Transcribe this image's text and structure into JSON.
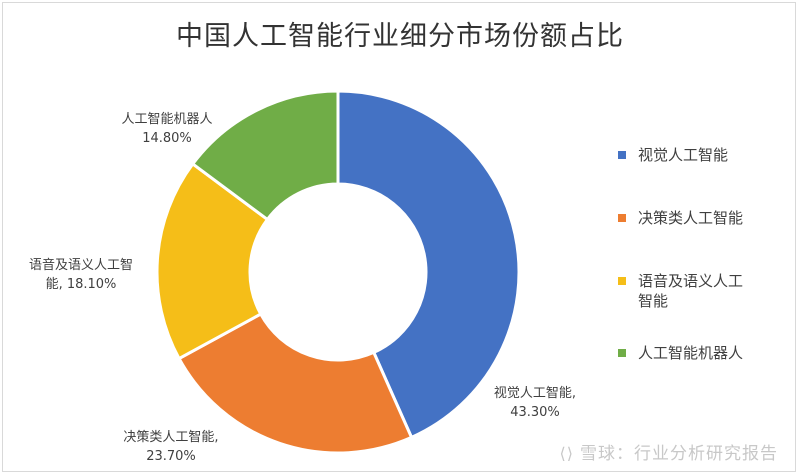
{
  "chart_data": {
    "type": "pie",
    "title": "中国人工智能行业细分市场份额占比",
    "series": [
      {
        "name": "视觉人工智能",
        "value": 43.3,
        "label": "43.30%",
        "color": "#4472C4"
      },
      {
        "name": "决策类人工智能",
        "value": 23.7,
        "label": "23.70%",
        "color": "#ED7D31"
      },
      {
        "name": "语音及语义人工智能",
        "value": 18.1,
        "label": "18.10%",
        "color": "#F5BE18"
      },
      {
        "name": "人工智能机器人",
        "value": 14.8,
        "label": "14.80%",
        "color": "#70AD47"
      }
    ],
    "data_labels": [
      {
        "line1": "视觉人工智能,",
        "line2": "43.30%"
      },
      {
        "line1": "决策类人工智能,",
        "line2": "23.70%"
      },
      {
        "line1": "语音及语义人工智",
        "line2": "能, 18.10%"
      },
      {
        "line1": "人工智能机器人",
        "line2": "14.80%"
      }
    ],
    "legend": {
      "placement": "right",
      "items": [
        "视觉人工智能",
        "决策类人工智能",
        "语音及语义人工",
        "人工智能机器人"
      ],
      "item3_line2": "智能"
    },
    "donut": true
  },
  "watermark": {
    "logo": "⟨⟩",
    "text": "雪球：行业分析研究报告"
  }
}
